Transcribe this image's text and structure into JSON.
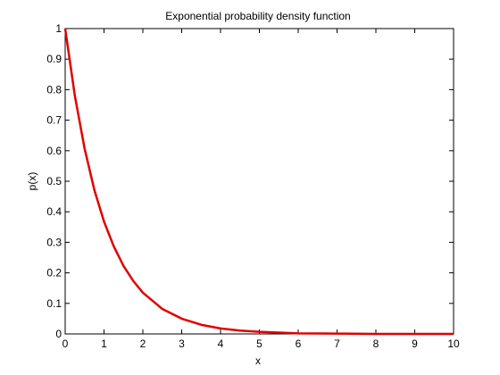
{
  "chart_data": {
    "type": "line",
    "title": "Exponential probability density function",
    "xlabel": "x",
    "ylabel": "p(x)",
    "xlim": [
      0,
      10
    ],
    "ylim": [
      0,
      1
    ],
    "grid": false,
    "legend": "none",
    "x_ticks": [
      0,
      1,
      2,
      3,
      4,
      5,
      6,
      7,
      8,
      9,
      10
    ],
    "x_tick_labels": [
      "0",
      "1",
      "2",
      "3",
      "4",
      "5",
      "6",
      "7",
      "8",
      "9",
      "10"
    ],
    "y_ticks": [
      0,
      0.1,
      0.2,
      0.3,
      0.4,
      0.5,
      0.6,
      0.7,
      0.8,
      0.9,
      1
    ],
    "y_tick_labels": [
      "0",
      "0.1",
      "0.2",
      "0.3",
      "0.4",
      "0.5",
      "0.6",
      "0.7",
      "0.8",
      "0.9",
      "1"
    ],
    "series": [
      {
        "color": "#e00000",
        "x": [
          0,
          0.25,
          0.5,
          0.75,
          1,
          1.25,
          1.5,
          1.75,
          2,
          2.5,
          3,
          3.5,
          4,
          4.5,
          5,
          6,
          7,
          8,
          9,
          10
        ],
        "y": [
          1.0,
          0.779,
          0.607,
          0.472,
          0.368,
          0.287,
          0.223,
          0.174,
          0.135,
          0.082,
          0.05,
          0.03,
          0.018,
          0.011,
          0.007,
          0.002,
          0.001,
          0.0,
          0.0,
          0.0
        ]
      }
    ]
  }
}
